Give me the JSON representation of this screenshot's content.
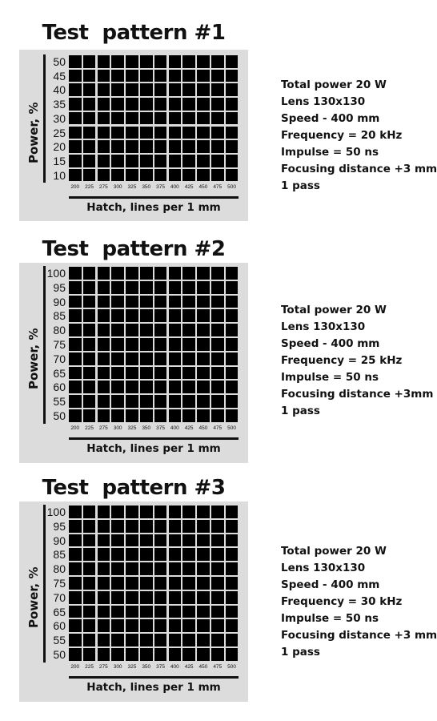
{
  "patterns": [
    {
      "title": "Test  pattern #1",
      "y_axis_label": "Power, %",
      "x_axis_label": "Hatch, lines per 1 mm",
      "power_levels": [
        "50",
        "45",
        "40",
        "35",
        "30",
        "25",
        "20",
        "15",
        "10"
      ],
      "hatch_values": [
        "200",
        "225",
        "275",
        "300",
        "325",
        "350",
        "375",
        "400",
        "425",
        "450",
        "475",
        "500"
      ],
      "params": [
        "Total power 20 W",
        "Lens 130x130",
        "Speed - 400 mm",
        "Frequency = 20 kHz",
        "Impulse = 50 ns",
        "Focusing distance +3 mm",
        "1 pass"
      ]
    },
    {
      "title": "Test  pattern #2",
      "y_axis_label": "Power, %",
      "x_axis_label": "Hatch, lines per 1 mm",
      "power_levels": [
        "100",
        "95",
        "90",
        "85",
        "80",
        "75",
        "70",
        "65",
        "60",
        "55",
        "50"
      ],
      "hatch_values": [
        "200",
        "225",
        "275",
        "300",
        "325",
        "350",
        "375",
        "400",
        "425",
        "450",
        "475",
        "500"
      ],
      "params": [
        "Total power 20 W",
        "Lens 130x130",
        "Speed - 400 mm",
        "Frequency = 25 kHz",
        "Impulse = 50 ns",
        "Focusing distance +3mm",
        "1 pass"
      ]
    },
    {
      "title": "Test  pattern #3",
      "y_axis_label": "Power, %",
      "x_axis_label": "Hatch, lines per 1 mm",
      "power_levels": [
        "100",
        "95",
        "90",
        "85",
        "80",
        "75",
        "70",
        "65",
        "60",
        "55",
        "50"
      ],
      "hatch_values": [
        "200",
        "225",
        "275",
        "300",
        "325",
        "350",
        "375",
        "400",
        "425",
        "450",
        "475",
        "500"
      ],
      "params": [
        "Total power 20 W",
        "Lens 130x130",
        "Speed - 400 mm",
        "Frequency = 30 kHz",
        "Impulse = 50 ns",
        "Focusing distance +3 mm",
        "1 pass"
      ]
    }
  ],
  "colors": {
    "panel": "#dcdcdc",
    "cell": "#000000",
    "text": "#111111"
  }
}
